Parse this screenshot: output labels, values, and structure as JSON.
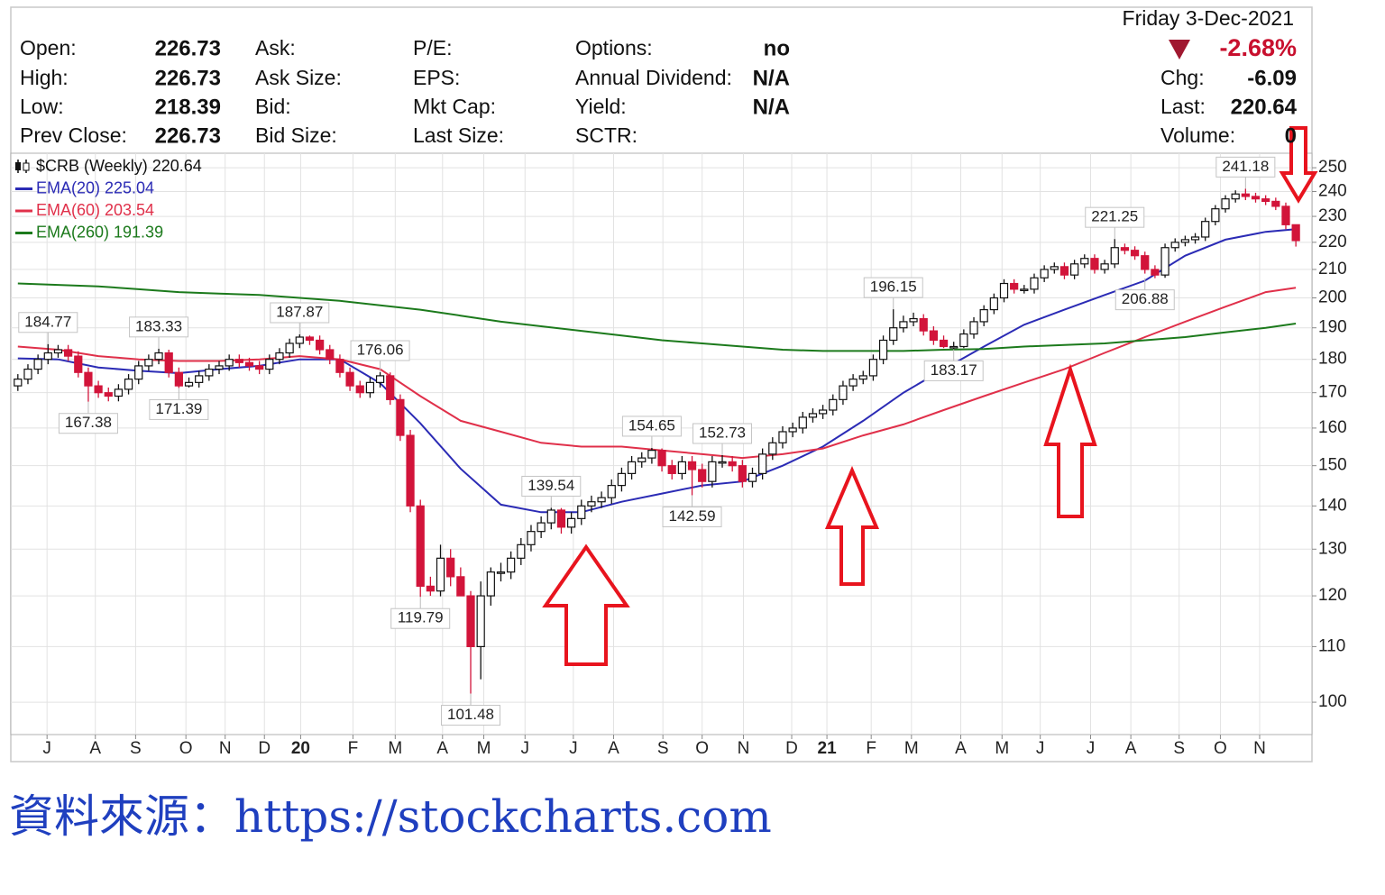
{
  "header": {
    "columns": [
      [
        {
          "label": "Open:",
          "value": "226.73"
        },
        {
          "label": "High:",
          "value": "226.73"
        },
        {
          "label": "Low:",
          "value": "218.39"
        },
        {
          "label": "Prev Close:",
          "value": "226.73"
        }
      ],
      [
        {
          "label": "Ask:"
        },
        {
          "label": "Ask Size:"
        },
        {
          "label": "Bid:"
        },
        {
          "label": "Bid Size:"
        }
      ],
      [
        {
          "label": "P/E:"
        },
        {
          "label": "EPS:"
        },
        {
          "label": "Mkt Cap:"
        },
        {
          "label": "Last Size:"
        }
      ],
      [
        {
          "label": "Options:",
          "value": "no"
        },
        {
          "label": "Annual Dividend:",
          "value": "N/A"
        },
        {
          "label": "Yield:",
          "value": "N/A"
        },
        {
          "label": "SCTR:"
        }
      ]
    ],
    "date": "Friday  3-Dec-2021",
    "change_pct": "-2.68%",
    "right": [
      {
        "label": "Chg:",
        "value": "-6.09"
      },
      {
        "label": "Last:",
        "value": "220.64"
      },
      {
        "label": "Volume:",
        "value": "0"
      }
    ]
  },
  "chart_data": {
    "type": "candlestick",
    "log_scale": true,
    "grid": true,
    "xlim": [
      -0.7,
      128.6
    ],
    "xticks": [
      {
        "value": 2.9,
        "label": "J"
      },
      {
        "value": 7.7,
        "label": "A"
      },
      {
        "value": 11.7,
        "label": "S"
      },
      {
        "value": 16.7,
        "label": "O"
      },
      {
        "value": 20.6,
        "label": "N"
      },
      {
        "value": 24.5,
        "label": "D"
      },
      {
        "value": 28.1,
        "label": "20"
      },
      {
        "value": 33.3,
        "label": "F"
      },
      {
        "value": 37.5,
        "label": "M"
      },
      {
        "value": 42.2,
        "label": "A"
      },
      {
        "value": 46.3,
        "label": "M"
      },
      {
        "value": 50.4,
        "label": "J"
      },
      {
        "value": 55.2,
        "label": "J"
      },
      {
        "value": 59.2,
        "label": "A"
      },
      {
        "value": 64.1,
        "label": "S"
      },
      {
        "value": 68,
        "label": "O"
      },
      {
        "value": 72.1,
        "label": "N"
      },
      {
        "value": 76.9,
        "label": "D"
      },
      {
        "value": 80.4,
        "label": "21"
      },
      {
        "value": 84.8,
        "label": "F"
      },
      {
        "value": 88.8,
        "label": "M"
      },
      {
        "value": 93.7,
        "label": "A"
      },
      {
        "value": 97.8,
        "label": "M"
      },
      {
        "value": 101.6,
        "label": "J"
      },
      {
        "value": 106.6,
        "label": "J"
      },
      {
        "value": 110.6,
        "label": "A"
      },
      {
        "value": 115.4,
        "label": "S"
      },
      {
        "value": 119.5,
        "label": "O"
      },
      {
        "value": 123.4,
        "label": "N"
      }
    ],
    "ylim": [
      94.6,
      256.3
    ],
    "yticks": [
      100,
      110,
      120,
      130,
      140,
      150,
      160,
      170,
      180,
      190,
      200,
      210,
      220,
      230,
      240,
      250
    ],
    "series": [
      {
        "name": "$CRB (Weekly) 220.64",
        "type": "candlestick",
        "up_color": "#ffffff",
        "down_color": "#d2143a",
        "color": "#111111",
        "open": [
          172,
          174,
          177,
          180,
          182,
          183,
          181,
          176,
          172,
          170,
          169,
          171,
          174,
          178,
          180,
          182,
          176,
          172,
          173,
          175,
          177,
          178,
          180,
          179,
          178,
          177,
          180,
          182,
          185,
          187,
          186,
          183,
          180,
          176,
          172,
          170,
          173,
          175,
          168,
          158,
          140,
          122,
          121,
          128,
          124,
          120,
          110,
          120,
          125,
          125,
          128,
          131,
          134,
          136,
          139,
          135,
          137,
          140,
          141,
          142,
          145,
          148,
          151,
          152,
          154,
          150,
          148,
          151,
          149,
          146,
          151,
          151,
          150,
          146,
          148,
          153,
          156,
          159,
          160,
          163,
          164,
          165,
          168,
          172,
          174,
          175,
          180,
          186,
          190,
          192,
          193,
          189,
          186,
          184,
          184,
          188,
          192,
          196,
          200,
          205,
          203,
          203,
          207,
          210,
          211,
          208,
          212,
          214,
          210,
          212,
          218,
          217,
          215,
          210,
          208,
          218,
          220,
          221,
          222,
          228,
          233,
          237,
          239,
          238,
          237,
          236,
          234,
          226.73
        ],
        "high": [
          175.5,
          178.5,
          181.5,
          184.77,
          184.5,
          184.5,
          182.5,
          177.5,
          173.5,
          171.5,
          172.5,
          175.5,
          179.5,
          181.5,
          183.33,
          183,
          177.5,
          174.5,
          176.5,
          178.5,
          179.5,
          181.5,
          181.5,
          180.5,
          179.5,
          181.5,
          183.5,
          186.5,
          187.87,
          187.5,
          187.5,
          184.5,
          181.5,
          177.5,
          173.5,
          174.5,
          176.06,
          176,
          169.5,
          159.5,
          141.5,
          124,
          131,
          130,
          126,
          121,
          123,
          126,
          127,
          129.5,
          132.5,
          135.5,
          137.5,
          139.54,
          139.5,
          138.5,
          141.5,
          142.5,
          143.5,
          146.5,
          149.5,
          152.5,
          153.5,
          154.65,
          154.5,
          151.5,
          152.5,
          152.5,
          150.5,
          152.5,
          152.73,
          152.5,
          151.5,
          149.5,
          154.5,
          157.5,
          160.5,
          161.5,
          164.5,
          165.5,
          166.5,
          169.5,
          173.5,
          175.5,
          176.5,
          181.5,
          187.5,
          196.15,
          194,
          195,
          194.5,
          190.5,
          187.5,
          185.5,
          189.5,
          193.5,
          197.5,
          201.5,
          206.5,
          206.5,
          204.5,
          208.5,
          211.5,
          212.5,
          212.5,
          213.5,
          215.5,
          215.5,
          213.5,
          221.25,
          219.5,
          218.5,
          216.5,
          211.5,
          219.5,
          221.5,
          222.5,
          223.5,
          229.5,
          234.5,
          238.5,
          240.5,
          241.18,
          239.5,
          238.5,
          237.5,
          235.5,
          226.73
        ],
        "low": [
          170.5,
          172.5,
          175.5,
          178.5,
          180.5,
          179.5,
          174.5,
          167.38,
          168.5,
          167.5,
          167.5,
          169.5,
          172.5,
          176.5,
          178.5,
          174.5,
          171.39,
          171.5,
          171.5,
          173.5,
          175.5,
          176.5,
          177.5,
          176.5,
          175.5,
          175.5,
          178.5,
          180.5,
          183.5,
          184.5,
          181.5,
          178.5,
          174.5,
          170.5,
          168.5,
          168.5,
          171.5,
          166.5,
          156.5,
          138.5,
          119.79,
          120,
          119.9,
          122,
          120,
          101.48,
          104,
          118,
          123,
          123.5,
          126.5,
          129.5,
          132.5,
          134.5,
          133.5,
          133.5,
          135.5,
          138.5,
          139.5,
          140.5,
          143.5,
          146.5,
          149.5,
          150.5,
          148.5,
          146.5,
          146.5,
          142.59,
          144.5,
          144.5,
          149.5,
          148.5,
          144.5,
          144.5,
          146.5,
          151.5,
          154.5,
          157.5,
          158.5,
          161.5,
          162.5,
          163.5,
          166.5,
          170.5,
          172.5,
          173.5,
          178.5,
          184.5,
          188.5,
          190.5,
          187.5,
          184.5,
          183.5,
          183.17,
          183.5,
          186.5,
          190.5,
          194.5,
          198.5,
          201.5,
          201.5,
          201.5,
          205.5,
          208.5,
          206.5,
          206.5,
          210.5,
          208.5,
          208.5,
          210.5,
          215.5,
          213.5,
          208.5,
          206.88,
          207,
          216.5,
          218.5,
          219.5,
          220.5,
          226.5,
          231.5,
          235.5,
          236.5,
          235.5,
          234.5,
          232.5,
          225,
          218.39
        ],
        "close": [
          174,
          177,
          180,
          182,
          183,
          181,
          176,
          172,
          170,
          169,
          171,
          174,
          178,
          180,
          182,
          176,
          172,
          173,
          175,
          177,
          178,
          180,
          179,
          178,
          177,
          180,
          182,
          185,
          187,
          186,
          183,
          180,
          176,
          172,
          170,
          173,
          175,
          168,
          158,
          140,
          122,
          121,
          128,
          124,
          120,
          110,
          120,
          125,
          125,
          128,
          131,
          134,
          136,
          139,
          135,
          137,
          140,
          141,
          142,
          145,
          148,
          151,
          152,
          154,
          150,
          148,
          151,
          149,
          146,
          151,
          151,
          150,
          146,
          148,
          153,
          156,
          159,
          160,
          163,
          164,
          165,
          168,
          172,
          174,
          175,
          180,
          186,
          190,
          192,
          193,
          189,
          186,
          184,
          184,
          188,
          192,
          196,
          200,
          205,
          203,
          203,
          207,
          210,
          211,
          208,
          212,
          214,
          210,
          212,
          218,
          217,
          215,
          210,
          208,
          218,
          220,
          221,
          222,
          228,
          233,
          237,
          239,
          238,
          237,
          236,
          234,
          226.73,
          220.64
        ]
      },
      {
        "name": "EMA(20) 225.04",
        "type": "line",
        "color": "#2b2bb5",
        "x": [
          0,
          4,
          8,
          12,
          16,
          20,
          24,
          28,
          32,
          36,
          40,
          44,
          48,
          52,
          56,
          60,
          64,
          68,
          72,
          76,
          80,
          84,
          88,
          92,
          96,
          100,
          104,
          108,
          112,
          116,
          120,
          124,
          127
        ],
        "values": [
          180.3,
          180,
          177.5,
          176.5,
          175.8,
          177,
          178,
          180,
          180,
          172.8,
          161.3,
          149.2,
          140.3,
          138.5,
          138.5,
          141,
          143,
          145,
          146,
          150,
          155,
          162,
          170,
          177,
          184,
          191,
          196,
          201,
          206,
          215,
          221,
          224,
          225.04
        ]
      },
      {
        "name": "EMA(60) 203.54",
        "type": "line",
        "color": "#e0304a",
        "x": [
          0,
          4,
          8,
          12,
          16,
          20,
          24,
          28,
          32,
          36,
          40,
          44,
          48,
          52,
          56,
          60,
          64,
          68,
          72,
          76,
          80,
          84,
          88,
          92,
          96,
          100,
          104,
          108,
          112,
          116,
          120,
          124,
          127
        ],
        "values": [
          184,
          183,
          181,
          180,
          179.5,
          179.5,
          180,
          181,
          180,
          177,
          169,
          162,
          159,
          156,
          155,
          155,
          154,
          153,
          152,
          153,
          154.5,
          158,
          161,
          165,
          169,
          173,
          177,
          182,
          187,
          192,
          197,
          202,
          203.54
        ]
      },
      {
        "name": "EMA(260) 191.39",
        "type": "line",
        "color": "#1c7a1c",
        "x": [
          0,
          4,
          8,
          12,
          16,
          20,
          24,
          28,
          32,
          36,
          40,
          44,
          48,
          52,
          56,
          60,
          64,
          68,
          72,
          76,
          80,
          84,
          88,
          92,
          96,
          100,
          104,
          108,
          112,
          116,
          120,
          124,
          127
        ],
        "values": [
          205,
          204.5,
          204,
          203,
          202,
          201.5,
          201,
          200,
          199,
          197.5,
          196,
          194,
          192,
          190.5,
          189,
          187.5,
          186,
          185,
          184,
          183,
          182.6,
          182.6,
          182.6,
          183,
          183.2,
          184,
          184.5,
          185,
          186,
          187,
          188.5,
          190,
          191.39
        ]
      }
    ],
    "annotations": [
      {
        "x": 3,
        "y": 184.77
      },
      {
        "x": 7,
        "y": 167.38
      },
      {
        "x": 14,
        "y": 183.33
      },
      {
        "x": 16,
        "y": 171.39
      },
      {
        "x": 28,
        "y": 187.87
      },
      {
        "x": 36,
        "y": 176.06
      },
      {
        "x": 40,
        "y": 119.79
      },
      {
        "x": 45,
        "y": 101.48
      },
      {
        "x": 53,
        "y": 139.54
      },
      {
        "x": 63,
        "y": 154.65
      },
      {
        "x": 67,
        "y": 142.59
      },
      {
        "x": 70,
        "y": 152.73
      },
      {
        "x": 87,
        "y": 196.15
      },
      {
        "x": 93,
        "y": 183.17
      },
      {
        "x": 109,
        "y": 221.25
      },
      {
        "x": 112,
        "y": 206.88
      },
      {
        "x": 122,
        "y": 241.18
      }
    ]
  },
  "source": "資料來源：https://stockcharts.com"
}
